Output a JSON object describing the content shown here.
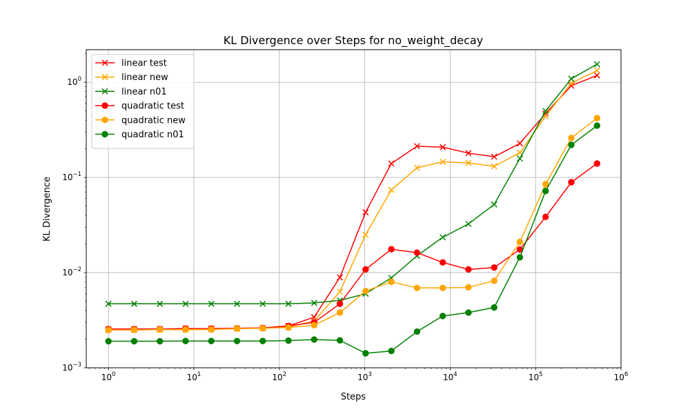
{
  "chart_data": {
    "type": "line",
    "title": "KL Divergence over Steps for no_weight_decay",
    "xlabel": "Steps",
    "ylabel": "KL Divergence",
    "x_scale": "log",
    "y_scale": "log",
    "xlim": [
      0.55,
      1000000
    ],
    "ylim": [
      0.001,
      2.2
    ],
    "grid": true,
    "legend_position": "upper-left",
    "x_ticks": [
      {
        "value": 1,
        "base": "10",
        "exp": "0"
      },
      {
        "value": 10,
        "base": "10",
        "exp": "1"
      },
      {
        "value": 100,
        "base": "10",
        "exp": "2"
      },
      {
        "value": 1000,
        "base": "10",
        "exp": "3"
      },
      {
        "value": 10000,
        "base": "10",
        "exp": "4"
      },
      {
        "value": 100000,
        "base": "10",
        "exp": "5"
      },
      {
        "value": 1000000,
        "base": "10",
        "exp": "6"
      }
    ],
    "y_ticks": [
      {
        "value": 0.001,
        "base": "10",
        "exp": "−3"
      },
      {
        "value": 0.01,
        "base": "10",
        "exp": "−2"
      },
      {
        "value": 0.1,
        "base": "10",
        "exp": "−1"
      },
      {
        "value": 1,
        "base": "10",
        "exp": "0"
      }
    ],
    "x": [
      1,
      2,
      4,
      8,
      16,
      32,
      64,
      128,
      256,
      512,
      1024,
      2048,
      4096,
      8192,
      16384,
      32768,
      65536,
      131072,
      262144,
      524288
    ],
    "series": [
      {
        "name": "linear test",
        "color": "#ff0000",
        "marker": "x",
        "values": [
          0.00255,
          0.00255,
          0.00255,
          0.00258,
          0.00258,
          0.0026,
          0.00262,
          0.00275,
          0.0034,
          0.0089,
          0.043,
          0.14,
          0.213,
          0.208,
          0.18,
          0.165,
          0.228,
          0.47,
          0.92,
          1.18
        ]
      },
      {
        "name": "linear new",
        "color": "#ffa500",
        "marker": "x",
        "values": [
          0.0025,
          0.0025,
          0.00252,
          0.00252,
          0.00253,
          0.00258,
          0.0026,
          0.00268,
          0.0031,
          0.0063,
          0.025,
          0.074,
          0.126,
          0.146,
          0.142,
          0.131,
          0.182,
          0.44,
          0.98,
          1.33
        ]
      },
      {
        "name": "linear n01",
        "color": "#008000",
        "marker": "x",
        "values": [
          0.0047,
          0.0047,
          0.0047,
          0.0047,
          0.0047,
          0.0047,
          0.0047,
          0.0047,
          0.0048,
          0.0051,
          0.006,
          0.0088,
          0.015,
          0.0235,
          0.0325,
          0.052,
          0.158,
          0.5,
          1.09,
          1.55
        ]
      },
      {
        "name": "quadratic test",
        "color": "#ff0000",
        "marker": "o",
        "values": [
          0.00255,
          0.00255,
          0.00255,
          0.00258,
          0.00258,
          0.0026,
          0.00262,
          0.00275,
          0.003,
          0.0047,
          0.0108,
          0.0176,
          0.0162,
          0.0128,
          0.0108,
          0.0113,
          0.0175,
          0.0385,
          0.089,
          0.14
        ]
      },
      {
        "name": "quadratic new",
        "color": "#ffa500",
        "marker": "o",
        "values": [
          0.0025,
          0.0025,
          0.00252,
          0.00252,
          0.00253,
          0.00258,
          0.0026,
          0.00265,
          0.0028,
          0.0038,
          0.0064,
          0.008,
          0.0069,
          0.0069,
          0.007,
          0.0082,
          0.021,
          0.085,
          0.26,
          0.42
        ]
      },
      {
        "name": "quadratic n01",
        "color": "#008000",
        "marker": "o",
        "values": [
          0.0019,
          0.0019,
          0.0019,
          0.00191,
          0.00191,
          0.00191,
          0.00191,
          0.00193,
          0.00198,
          0.00194,
          0.00142,
          0.0015,
          0.0024,
          0.0035,
          0.0038,
          0.0043,
          0.0145,
          0.072,
          0.22,
          0.35
        ]
      }
    ]
  }
}
